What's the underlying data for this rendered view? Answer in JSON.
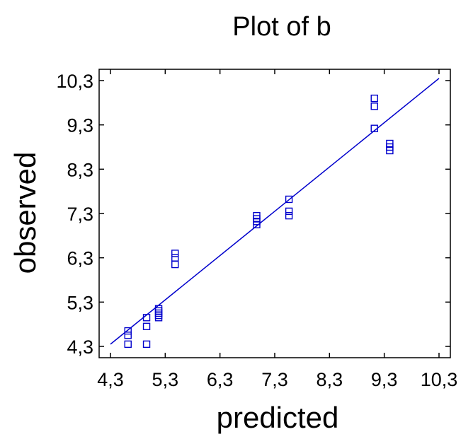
{
  "chart_data": {
    "type": "scatter",
    "title": "Plot of b",
    "xlabel": "predicted",
    "ylabel": "observed",
    "xlim": [
      4.3,
      10.3
    ],
    "ylim": [
      4.3,
      10.3
    ],
    "xticks": [
      "4,3",
      "5,3",
      "6,3",
      "7,3",
      "8,3",
      "9,3",
      "10,3"
    ],
    "yticks": [
      "4,3",
      "5,3",
      "6,3",
      "7,3",
      "8,3",
      "9,3",
      "10,3"
    ],
    "tick_values": [
      4.3,
      5.3,
      6.3,
      7.3,
      8.3,
      9.3,
      10.3
    ],
    "grid": false,
    "colors": {
      "points": "#0000cc",
      "fit_line": "#0000cc",
      "axes": "#000000"
    },
    "marker": "square",
    "fit_line": {
      "x": [
        4.3,
        10.3
      ],
      "y": [
        4.35,
        10.35
      ]
    },
    "points": [
      {
        "x": 4.62,
        "y": 4.35
      },
      {
        "x": 4.62,
        "y": 4.55
      },
      {
        "x": 4.62,
        "y": 4.65
      },
      {
        "x": 4.96,
        "y": 4.35
      },
      {
        "x": 4.96,
        "y": 4.75
      },
      {
        "x": 4.96,
        "y": 4.95
      },
      {
        "x": 5.18,
        "y": 4.95
      },
      {
        "x": 5.18,
        "y": 5.0
      },
      {
        "x": 5.18,
        "y": 5.05
      },
      {
        "x": 5.18,
        "y": 5.1
      },
      {
        "x": 5.18,
        "y": 5.15
      },
      {
        "x": 5.48,
        "y": 6.15
      },
      {
        "x": 5.48,
        "y": 6.3
      },
      {
        "x": 5.48,
        "y": 6.4
      },
      {
        "x": 6.97,
        "y": 7.05
      },
      {
        "x": 6.97,
        "y": 7.12
      },
      {
        "x": 6.97,
        "y": 7.18
      },
      {
        "x": 6.97,
        "y": 7.25
      },
      {
        "x": 7.56,
        "y": 7.25
      },
      {
        "x": 7.56,
        "y": 7.35
      },
      {
        "x": 7.56,
        "y": 7.62
      },
      {
        "x": 9.12,
        "y": 9.22
      },
      {
        "x": 9.12,
        "y": 9.72
      },
      {
        "x": 9.12,
        "y": 9.9
      },
      {
        "x": 9.4,
        "y": 8.72
      },
      {
        "x": 9.4,
        "y": 8.8
      },
      {
        "x": 9.4,
        "y": 8.88
      }
    ]
  }
}
